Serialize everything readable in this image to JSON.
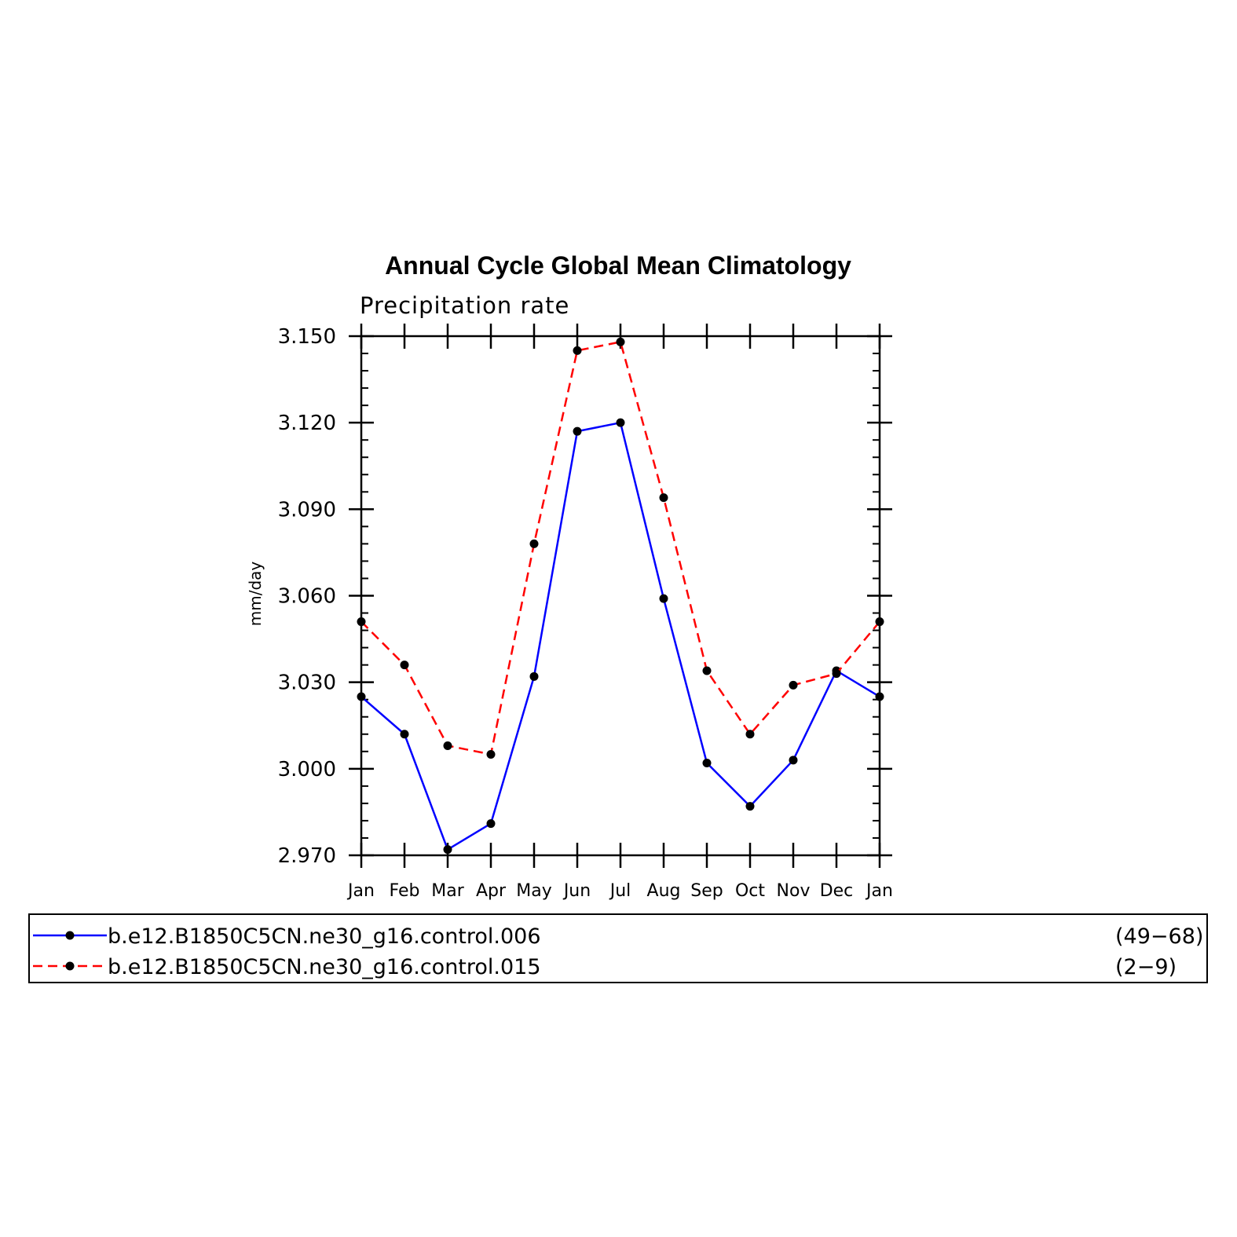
{
  "chart_data": {
    "type": "line",
    "title": "Annual Cycle Global Mean Climatology",
    "subtitle": "Precipitation rate",
    "xlabel": "",
    "ylabel": "mm/day",
    "categories": [
      "Jan",
      "Feb",
      "Mar",
      "Apr",
      "May",
      "Jun",
      "Jul",
      "Aug",
      "Sep",
      "Oct",
      "Nov",
      "Dec",
      "Jan"
    ],
    "ylim": [
      2.97,
      3.15
    ],
    "yticks": [
      "2.970",
      "3.000",
      "3.030",
      "3.060",
      "3.090",
      "3.120",
      "3.150"
    ],
    "yticks_values": [
      2.97,
      3.0,
      3.03,
      3.06,
      3.09,
      3.12,
      3.15
    ],
    "grid": false,
    "legend_position": "bottom",
    "series": [
      {
        "name": "b.e12.B1850C5CN.ne30_g16.control.006",
        "years": "(49−68)",
        "color": "#0000ff",
        "dash": "solid",
        "marker": "filled-circle",
        "values": [
          3.025,
          3.012,
          2.972,
          2.981,
          3.032,
          3.117,
          3.12,
          3.059,
          3.002,
          2.987,
          3.003,
          3.034,
          3.025
        ]
      },
      {
        "name": "b.e12.B1850C5CN.ne30_g16.control.015",
        "years": "(2−9)",
        "color": "#ff0000",
        "dash": "dashed",
        "marker": "filled-circle",
        "values": [
          3.051,
          3.036,
          3.008,
          3.005,
          3.078,
          3.145,
          3.148,
          3.094,
          3.034,
          3.012,
          3.029,
          3.033,
          3.051
        ]
      }
    ]
  }
}
